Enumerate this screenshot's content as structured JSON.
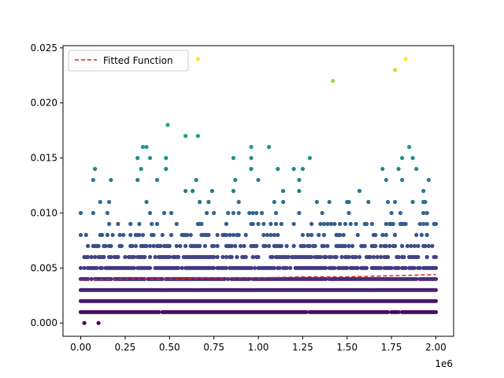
{
  "chart_data": {
    "type": "scatter",
    "title": "",
    "xlabel": "",
    "ylabel": "",
    "x_offset_label": "1e6",
    "xlim": [
      -100000,
      2100000
    ],
    "ylim": [
      -0.0012,
      0.0252
    ],
    "x_ticks": [
      {
        "value": 0,
        "label": "0.00"
      },
      {
        "value": 250000,
        "label": "0.25"
      },
      {
        "value": 500000,
        "label": "0.50"
      },
      {
        "value": 750000,
        "label": "0.75"
      },
      {
        "value": 1000000,
        "label": "1.00"
      },
      {
        "value": 1250000,
        "label": "1.25"
      },
      {
        "value": 1500000,
        "label": "1.50"
      },
      {
        "value": 1750000,
        "label": "1.75"
      },
      {
        "value": 2000000,
        "label": "2.00"
      }
    ],
    "y_ticks": [
      {
        "value": 0.0,
        "label": "0.000"
      },
      {
        "value": 0.005,
        "label": "0.005"
      },
      {
        "value": 0.01,
        "label": "0.010"
      },
      {
        "value": 0.015,
        "label": "0.015"
      },
      {
        "value": 0.02,
        "label": "0.020"
      },
      {
        "value": 0.025,
        "label": "0.025"
      }
    ],
    "grid": false,
    "legend": {
      "placement": "top-left",
      "entries": [
        {
          "label": "Fitted Function",
          "color": "#d62728",
          "style": "dashed"
        }
      ]
    },
    "colormap": "viridis",
    "series": [
      {
        "kind": "points",
        "color_by": "y",
        "points": [
          [
            20000,
            0.0
          ],
          [
            100000,
            0.0
          ],
          [
            660000,
            0.024
          ],
          [
            1830000,
            0.024
          ],
          [
            1770000,
            0.023
          ],
          [
            1420000,
            0.022
          ],
          [
            490000,
            0.018
          ],
          [
            590000,
            0.017
          ],
          [
            660000,
            0.017
          ],
          [
            350000,
            0.016
          ],
          [
            370000,
            0.016
          ],
          [
            960000,
            0.016
          ],
          [
            1060000,
            0.016
          ],
          [
            1850000,
            0.016
          ],
          [
            320000,
            0.015
          ],
          [
            390000,
            0.015
          ],
          [
            480000,
            0.015
          ],
          [
            860000,
            0.015
          ],
          [
            960000,
            0.015
          ],
          [
            1290000,
            0.015
          ],
          [
            1870000,
            0.015
          ],
          [
            1810000,
            0.015
          ],
          [
            80000,
            0.014
          ],
          [
            340000,
            0.014
          ],
          [
            480000,
            0.014
          ],
          [
            960000,
            0.014
          ],
          [
            1110000,
            0.014
          ],
          [
            1200000,
            0.014
          ],
          [
            1250000,
            0.014
          ],
          [
            1700000,
            0.014
          ],
          [
            1790000,
            0.014
          ],
          [
            1890000,
            0.014
          ],
          [
            70000,
            0.013
          ],
          [
            170000,
            0.013
          ],
          [
            320000,
            0.013
          ],
          [
            430000,
            0.013
          ],
          [
            650000,
            0.013
          ],
          [
            870000,
            0.013
          ],
          [
            1000000,
            0.013
          ],
          [
            1230000,
            0.013
          ],
          [
            1720000,
            0.013
          ],
          [
            1810000,
            0.013
          ],
          [
            1960000,
            0.013
          ]
        ]
      },
      {
        "kind": "bands",
        "color_by": "y",
        "bands": [
          {
            "y": 0.012,
            "density": 0.05
          },
          {
            "y": 0.011,
            "density": 0.08
          },
          {
            "y": 0.01,
            "density": 0.13
          },
          {
            "y": 0.009,
            "density": 0.2
          },
          {
            "y": 0.008,
            "density": 0.32
          },
          {
            "y": 0.007,
            "density": 0.48
          },
          {
            "y": 0.006,
            "density": 0.68
          },
          {
            "y": 0.005,
            "density": 0.86
          },
          {
            "y": 0.004,
            "density": 0.95
          },
          {
            "y": 0.003,
            "density": 1.0
          },
          {
            "y": 0.002,
            "density": 1.0
          },
          {
            "y": 0.001,
            "density": 0.98
          }
        ],
        "x_range": [
          0,
          2000000
        ]
      },
      {
        "kind": "fitted_line",
        "name": "Fitted Function",
        "color": "#d62728",
        "style": "dashed",
        "x": [
          0,
          250000,
          500000,
          750000,
          1000000,
          1250000,
          1500000,
          1750000,
          2000000
        ],
        "y": [
          0.0039,
          0.004,
          0.004,
          0.0041,
          0.0041,
          0.0042,
          0.0042,
          0.0043,
          0.0044
        ]
      }
    ]
  }
}
